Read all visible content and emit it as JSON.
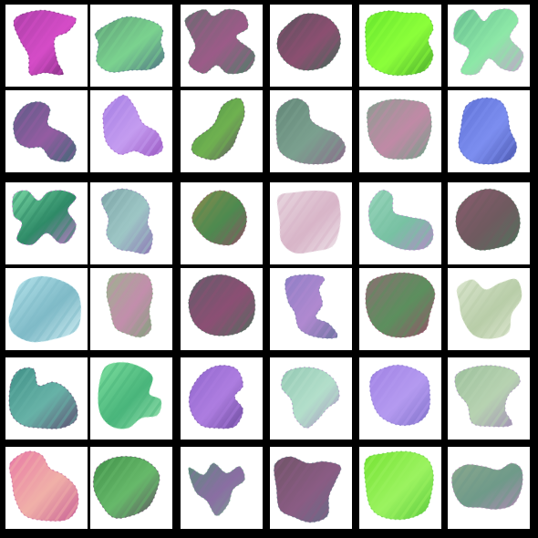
{
  "grid": {
    "rows": 6,
    "cols": 6,
    "frame_color": "#000000",
    "tile_background": "#ffffff"
  },
  "samples": [
    {
      "colors": [
        "#a83fa5",
        "#d54cc7",
        "#702a73"
      ]
    },
    {
      "colors": [
        "#5c9a76",
        "#7bd28f",
        "#4e6f85"
      ]
    },
    {
      "colors": [
        "#6a6a70",
        "#9b5b88",
        "#4e7e67"
      ]
    },
    {
      "colors": [
        "#56505a",
        "#8b4f71",
        "#3f6a57"
      ]
    },
    {
      "colors": [
        "#66e52d",
        "#8bff3a",
        "#4aa82d"
      ]
    },
    {
      "colors": [
        "#64b98e",
        "#8de8a7",
        "#c4a1cc"
      ]
    },
    {
      "colors": [
        "#595c84",
        "#945ca2",
        "#3f6975"
      ]
    },
    {
      "colors": [
        "#a27ce2",
        "#c49cf0",
        "#9b59c3"
      ]
    },
    {
      "colors": [
        "#4a8a48",
        "#6fb150",
        "#5d4a64"
      ]
    },
    {
      "colors": [
        "#628677",
        "#7ba08f",
        "#8b6b8b"
      ]
    },
    {
      "colors": [
        "#8a9d90",
        "#c08aa6",
        "#6ea287"
      ]
    },
    {
      "colors": [
        "#5d6fd3",
        "#7c8ef0",
        "#4a56ad"
      ]
    },
    {
      "colors": [
        "#7ad8a5",
        "#2e8a67",
        "#c07ac9"
      ]
    },
    {
      "colors": [
        "#7ca4a6",
        "#9dc6c5",
        "#8e78b6"
      ]
    },
    {
      "colors": [
        "#8f8a4e",
        "#4d8a4f",
        "#8f4f65"
      ]
    },
    {
      "colors": [
        "#e8d8e0",
        "#d8b5c8",
        "#efe6eb"
      ]
    },
    {
      "colors": [
        "#9ad6bd",
        "#78c1a3",
        "#b38bc6"
      ]
    },
    {
      "colors": [
        "#8c5c70",
        "#6f5a5f",
        "#4f755e"
      ]
    },
    {
      "colors": [
        "#b9e6ee",
        "#7fbac7",
        "#d8f3f8"
      ]
    },
    {
      "colors": [
        "#9bb38d",
        "#c28eac",
        "#7ea379"
      ]
    },
    {
      "colors": [
        "#5f5d68",
        "#8b4f74",
        "#4f6e5d"
      ]
    },
    {
      "colors": [
        "#8d7ec5",
        "#b089d0",
        "#6d74a0"
      ]
    },
    {
      "colors": [
        "#8d6d73",
        "#5c8f5e",
        "#9a4d6b"
      ]
    },
    {
      "colors": [
        "#dbe6cf",
        "#b8cda8",
        "#e8eedc"
      ]
    },
    {
      "colors": [
        "#3f8f86",
        "#67b2a7",
        "#5f4d71"
      ]
    },
    {
      "colors": [
        "#7fe0a0",
        "#49b57b",
        "#9fe6b5"
      ]
    },
    {
      "colors": [
        "#8e65cb",
        "#ad7de0",
        "#6c4b9d"
      ]
    },
    {
      "colors": [
        "#92c7b2",
        "#b3dfcb",
        "#a78cc0"
      ]
    },
    {
      "colors": [
        "#9f81e3",
        "#b49af0",
        "#7e70c8"
      ]
    },
    {
      "colors": [
        "#9bbf9b",
        "#b7d2b1",
        "#a18ab7"
      ]
    },
    {
      "colors": [
        "#e879a5",
        "#f0b0a8",
        "#c85e96"
      ]
    },
    {
      "colors": [
        "#3f8f48",
        "#67b96a",
        "#5d4a60"
      ]
    },
    {
      "colors": [
        "#5d8a7c",
        "#8a6ea3",
        "#76a78d"
      ]
    },
    {
      "colors": [
        "#6f5466",
        "#8a5c84",
        "#5f6f86"
      ]
    },
    {
      "colors": [
        "#74e232",
        "#9bf360",
        "#59c83b"
      ]
    },
    {
      "colors": [
        "#8ca98e",
        "#6f9a89",
        "#b08ab3"
      ]
    }
  ]
}
